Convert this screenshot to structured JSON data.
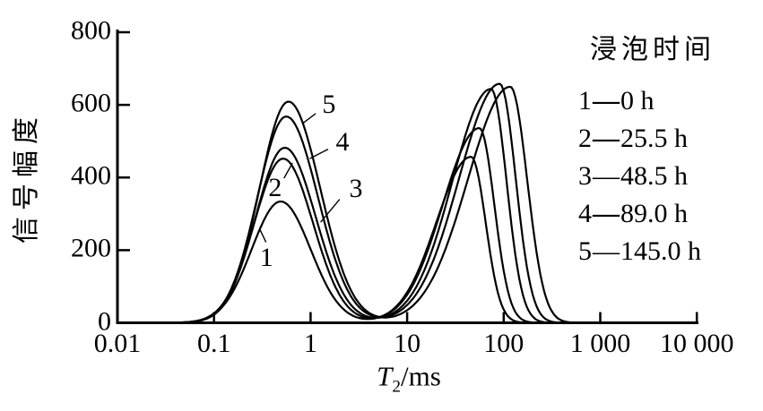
{
  "figure": {
    "background": "#ffffff",
    "ink_color": "#000000"
  },
  "y_axis": {
    "label": "信号幅度",
    "tick_labels": [
      "0",
      "200",
      "400",
      "600",
      "800"
    ],
    "tick_values": [
      0,
      200,
      400,
      600,
      800
    ],
    "range": [
      0,
      800
    ]
  },
  "x_axis": {
    "title_symbol": "T",
    "title_subscript": "2",
    "title_unit": "/ms",
    "scale": "log",
    "tick_labels": [
      "0.01",
      "0.1",
      "1",
      "10",
      "100",
      "1 000",
      "10 000"
    ],
    "tick_values": [
      0.01,
      0.1,
      1,
      10,
      100,
      1000,
      10000
    ],
    "range": [
      0.01,
      10000
    ]
  },
  "legend": {
    "title": "浸泡时间",
    "items": [
      {
        "index": "1",
        "dash": "—",
        "time": "0 h",
        "heavy_dash": true
      },
      {
        "index": "2",
        "dash": "—",
        "time": "25.5 h",
        "heavy_dash": true
      },
      {
        "index": "3",
        "dash": "—",
        "time": "48.5 h",
        "heavy_dash": false
      },
      {
        "index": "4",
        "dash": "—",
        "time": "89.0 h",
        "heavy_dash": true
      },
      {
        "index": "5",
        "dash": "—",
        "time": "145.0 h",
        "heavy_dash": false
      }
    ]
  },
  "chart_data": {
    "type": "line",
    "title": "",
    "xlabel": "T2/ms",
    "ylabel": "信号幅度",
    "x_scale": "log10",
    "xlim": [
      0.01,
      10000
    ],
    "ylim": [
      0,
      800
    ],
    "grid": false,
    "legend_position": "upper right",
    "line_color": "#000000",
    "series": [
      {
        "name": "1",
        "soak_time": "0 h",
        "soak_time_h": 0,
        "peaks": [
          {
            "t_ms": 0.49,
            "amplitude": 334,
            "sigma_left_dec": 0.3,
            "sigma_right_dec": 0.31
          },
          {
            "t_ms": 46,
            "amplitude": 457,
            "sigma_left_dec": 0.36,
            "sigma_right_dec": 0.15
          }
        ]
      },
      {
        "name": "2",
        "soak_time": "25.5 h",
        "soak_time_h": 25.5,
        "peaks": [
          {
            "t_ms": 0.52,
            "amplitude": 452,
            "sigma_left_dec": 0.3,
            "sigma_right_dec": 0.31
          },
          {
            "t_ms": 56,
            "amplitude": 536,
            "sigma_left_dec": 0.38,
            "sigma_right_dec": 0.155
          }
        ]
      },
      {
        "name": "3",
        "soak_time": "48.5 h",
        "soak_time_h": 48.5,
        "peaks": [
          {
            "t_ms": 0.54,
            "amplitude": 482,
            "sigma_left_dec": 0.3,
            "sigma_right_dec": 0.32
          },
          {
            "t_ms": 74,
            "amplitude": 644,
            "sigma_left_dec": 0.4,
            "sigma_right_dec": 0.16
          }
        ]
      },
      {
        "name": "4",
        "soak_time": "89.0 h",
        "soak_time_h": 89.0,
        "peaks": [
          {
            "t_ms": 0.56,
            "amplitude": 568,
            "sigma_left_dec": 0.3,
            "sigma_right_dec": 0.33
          },
          {
            "t_ms": 91,
            "amplitude": 658,
            "sigma_left_dec": 0.42,
            "sigma_right_dec": 0.165
          }
        ]
      },
      {
        "name": "5",
        "soak_time": "145.0 h",
        "soak_time_h": 145.0,
        "peaks": [
          {
            "t_ms": 0.59,
            "amplitude": 609,
            "sigma_left_dec": 0.3,
            "sigma_right_dec": 0.33
          },
          {
            "t_ms": 117,
            "amplitude": 650,
            "sigma_left_dec": 0.44,
            "sigma_right_dec": 0.175
          }
        ]
      }
    ],
    "annotations": [
      {
        "label": "1",
        "text_t_ms": 0.35,
        "text_amp": 178,
        "leader_from": [
          0.345,
          222
        ],
        "leader_to": [
          0.3,
          256
        ]
      },
      {
        "label": "2",
        "text_t_ms": 0.43,
        "text_amp": 372,
        "leader_from": [
          0.53,
          398
        ],
        "leader_to": [
          0.65,
          440
        ]
      },
      {
        "label": "3",
        "text_t_ms": 2.95,
        "text_amp": 368,
        "leader_from": [
          2.0,
          340
        ],
        "leader_to": [
          1.27,
          277
        ]
      },
      {
        "label": "4",
        "text_t_ms": 2.14,
        "text_amp": 497,
        "leader_from": [
          1.52,
          478
        ],
        "leader_to": [
          0.98,
          452
        ]
      },
      {
        "label": "5",
        "text_t_ms": 1.55,
        "text_amp": 600,
        "leader_from": [
          1.13,
          576
        ],
        "leader_to": [
          0.82,
          548
        ]
      }
    ]
  }
}
